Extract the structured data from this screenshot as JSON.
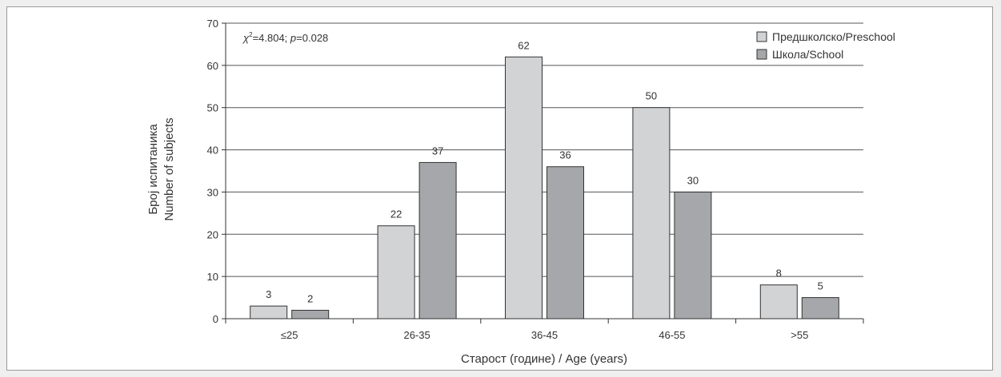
{
  "chart_data": {
    "type": "bar",
    "categories": [
      "≤25",
      "26-35",
      "36-45",
      "46-55",
      ">55"
    ],
    "series": [
      {
        "name": "Предшколско/Preschool",
        "values": [
          3,
          22,
          62,
          50,
          8
        ],
        "color": "#d2d3d5"
      },
      {
        "name": "Школа/School",
        "values": [
          2,
          37,
          36,
          30,
          5
        ],
        "color": "#a6a7aa"
      }
    ],
    "xlabel": "Старост (године) / Age (years)",
    "ylabel_line1": "Број испитаника",
    "ylabel_line2": "Number of subjects",
    "ylim": [
      0,
      70
    ],
    "yticks": [
      0,
      10,
      20,
      30,
      40,
      50,
      60,
      70
    ],
    "grid": true,
    "legend_position": "top-right",
    "annotation": {
      "chi_symbol": "χ",
      "chi_power": "2",
      "chi_value": "=4.804; ",
      "p_symbol": "p",
      "p_value": "=0.028"
    }
  }
}
